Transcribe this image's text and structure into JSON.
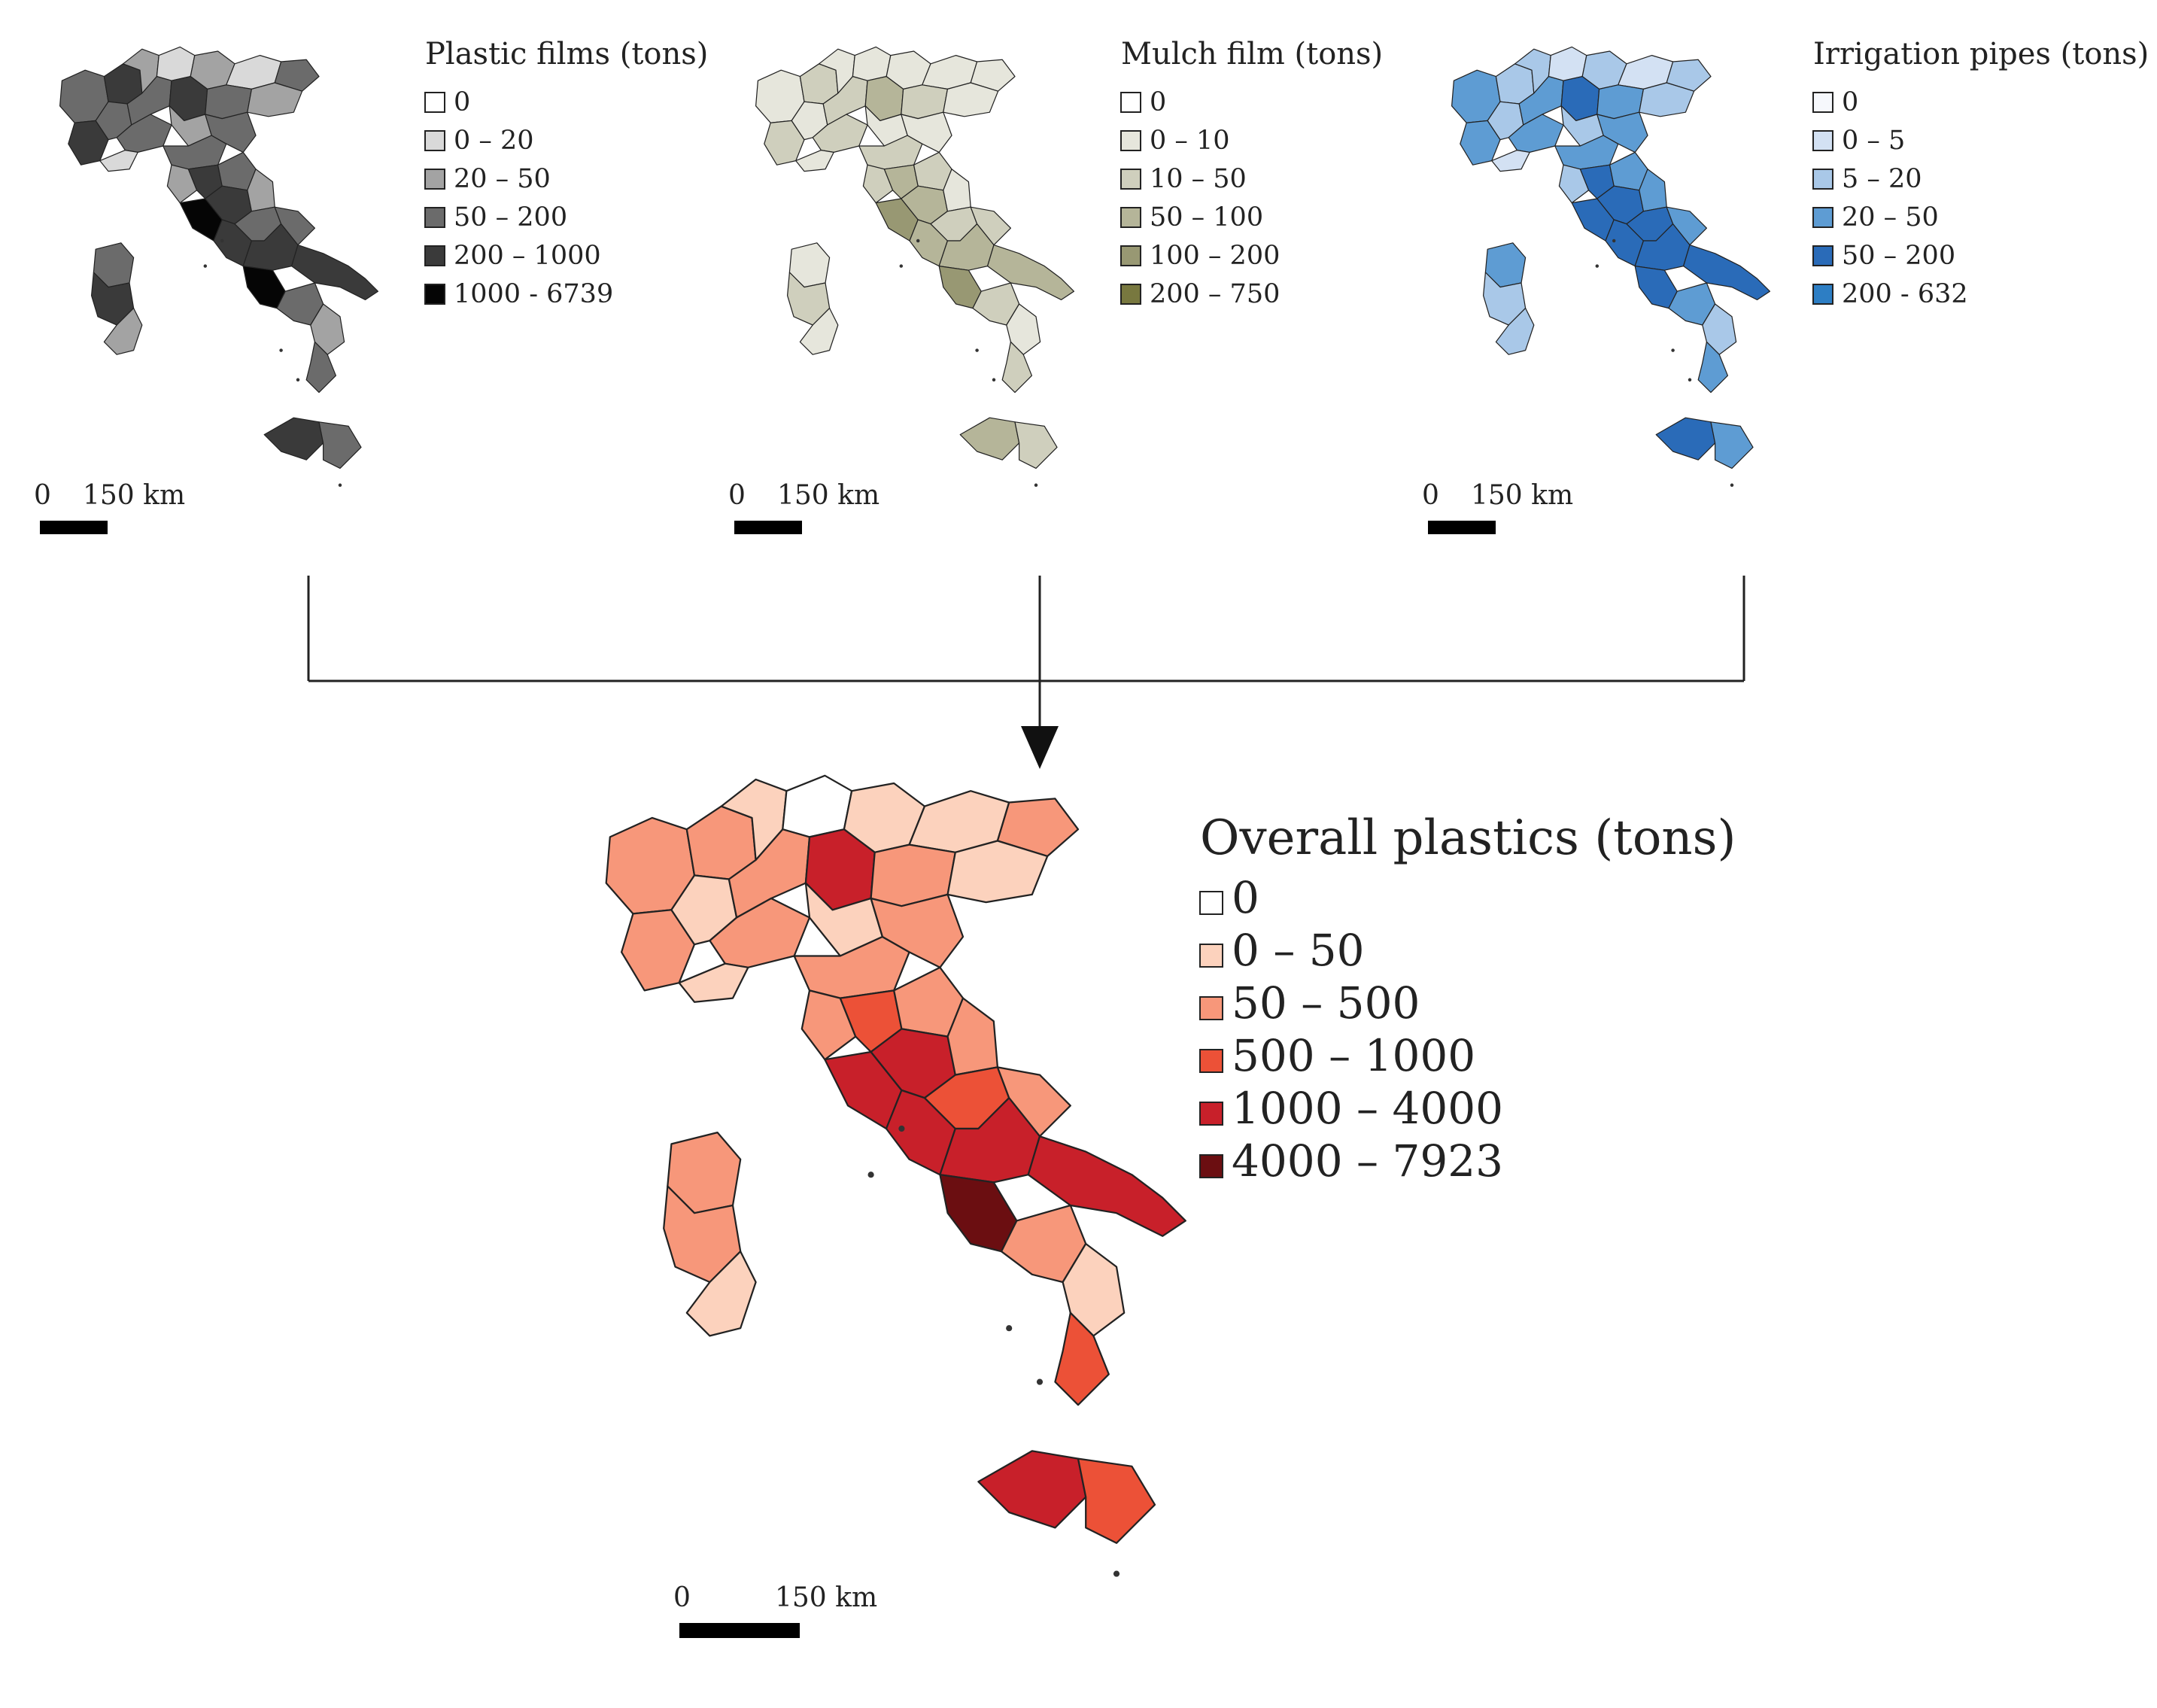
{
  "maps": [
    {
      "id": "plastic-films",
      "legend_title": "Plastic films (tons)",
      "classes": [
        {
          "label": "0",
          "color": "#ffffff"
        },
        {
          "label": "0 – 20",
          "color": "#d9d9d9"
        },
        {
          "label": "20 – 50",
          "color": "#a3a3a3"
        },
        {
          "label": "50 – 200",
          "color": "#6b6b6b"
        },
        {
          "label": "200 – 1000",
          "color": "#3a3a3a"
        },
        {
          "label": "1000 - 6739",
          "color": "#050505"
        }
      ],
      "scale": {
        "zero": "0",
        "distance": "150 km"
      }
    },
    {
      "id": "mulch-film",
      "legend_title": "Mulch film (tons)",
      "classes": [
        {
          "label": "0",
          "color": "#ffffff"
        },
        {
          "label": "0 – 10",
          "color": "#e6e6dc"
        },
        {
          "label": "10 – 50",
          "color": "#cfcfbd"
        },
        {
          "label": "50 – 100",
          "color": "#b5b599"
        },
        {
          "label": "100 – 200",
          "color": "#989873"
        },
        {
          "label": "200 – 750",
          "color": "#78783f"
        }
      ],
      "scale": {
        "zero": "0",
        "distance": "150 km"
      }
    },
    {
      "id": "irrigation-pipes",
      "legend_title": "Irrigation pipes (tons)",
      "classes": [
        {
          "label": "0",
          "color": "#f6f8fc"
        },
        {
          "label": "0 – 5",
          "color": "#d3e1f3"
        },
        {
          "label": "5 – 20",
          "color": "#a9c8e8"
        },
        {
          "label": "20 – 50",
          "color": "#5e9cd3"
        },
        {
          "label": "50 – 200",
          "color": "#2a6bb8"
        },
        {
          "label": "200 - 632",
          "color": "#2d7ec4"
        }
      ],
      "scale": {
        "zero": "0",
        "distance": "150 km"
      }
    }
  ],
  "overall": {
    "id": "overall-plastics",
    "legend_title": "Overall plastics (tons)",
    "classes": [
      {
        "label": "0",
        "color": "#ffffff"
      },
      {
        "label": "0 – 50",
        "color": "#fcd2bd"
      },
      {
        "label": "50 – 500",
        "color": "#f7977a"
      },
      {
        "label": "500 – 1000",
        "color": "#ec5137"
      },
      {
        "label": "1000 – 4000",
        "color": "#c8202a"
      },
      {
        "label": "4000 – 7923",
        "color": "#6b0e11"
      }
    ],
    "scale": {
      "zero": "0",
      "distance": "150 km"
    }
  },
  "fill_indices": {
    "plastic-films": [
      3,
      4,
      2,
      4,
      3,
      1,
      3,
      2,
      4,
      1,
      3,
      3,
      2,
      3,
      2,
      1,
      3,
      3,
      2,
      4,
      3,
      5,
      4,
      2,
      4,
      3,
      3,
      4,
      5,
      4,
      3,
      2,
      3,
      4,
      3
    ],
    "mulch-film": [
      1,
      2,
      1,
      2,
      1,
      1,
      2,
      1,
      3,
      1,
      1,
      2,
      1,
      2,
      1,
      1,
      2,
      1,
      2,
      3,
      2,
      4,
      3,
      1,
      3,
      2,
      2,
      3,
      4,
      3,
      2,
      1,
      2,
      3,
      2
    ],
    "irrigation-pipes": [
      3,
      2,
      2,
      3,
      2,
      1,
      3,
      2,
      4,
      1,
      2,
      3,
      2,
      3,
      2,
      1,
      3,
      3,
      2,
      4,
      3,
      4,
      4,
      3,
      4,
      4,
      3,
      4,
      4,
      4,
      3,
      2,
      3,
      4,
      3
    ],
    "overall-plastics": [
      2,
      2,
      1,
      2,
      1,
      0,
      2,
      1,
      4,
      1,
      2,
      2,
      1,
      2,
      1,
      1,
      2,
      2,
      2,
      3,
      2,
      4,
      4,
      2,
      4,
      3,
      2,
      4,
      5,
      4,
      2,
      1,
      3,
      4,
      3
    ]
  }
}
